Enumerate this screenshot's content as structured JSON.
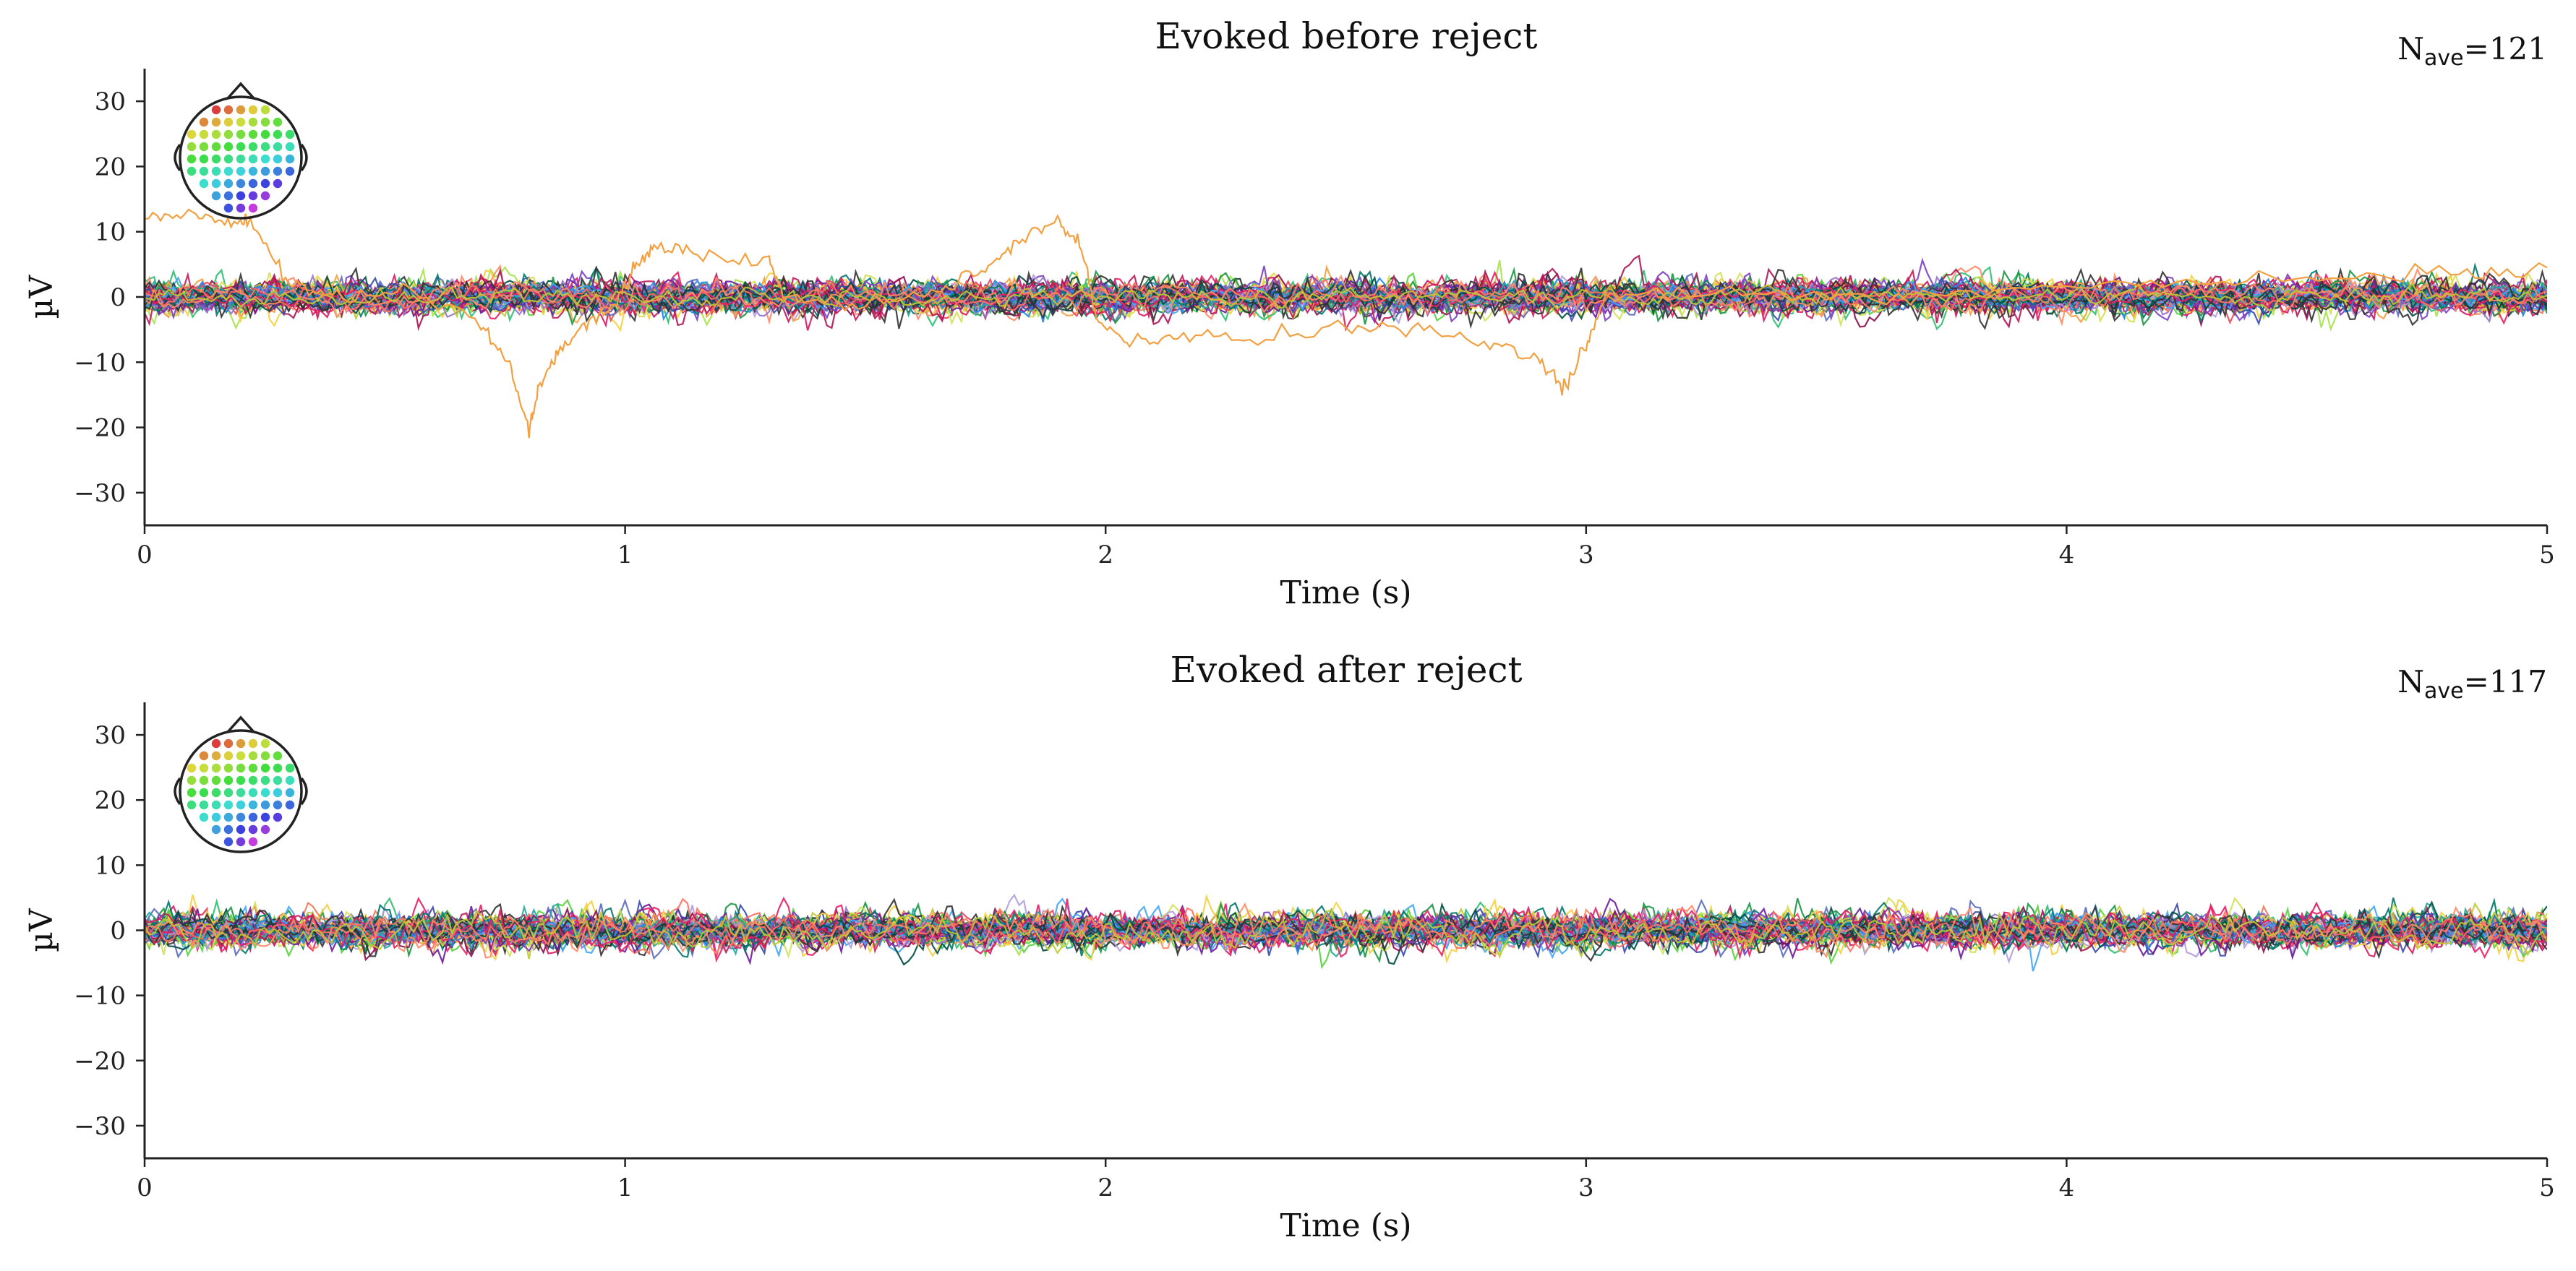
{
  "chart_data": [
    {
      "type": "line",
      "title": "Evoked before reject",
      "nave_label": "N",
      "nave_sub": "ave",
      "nave_value": "=121",
      "xlabel": "Time (s)",
      "ylabel": "µV",
      "xlim": [
        0,
        5
      ],
      "ylim": [
        -35,
        35
      ],
      "xticks": [
        0,
        1,
        2,
        3,
        4,
        5
      ],
      "yticks": [
        -30,
        -20,
        -10,
        0,
        10,
        20,
        30
      ],
      "ytick_labels": [
        "−30",
        "−20",
        "−10",
        "0",
        "10",
        "20",
        "30"
      ],
      "grid": false,
      "n_channels": 60,
      "channel_noise_uV": 1.3,
      "outlier_channel": {
        "color": "#f4a040",
        "points": [
          [
            0,
            12.5
          ],
          [
            0.1,
            13
          ],
          [
            0.18,
            11
          ],
          [
            0.22,
            12
          ],
          [
            0.3,
            2
          ],
          [
            0.4,
            0
          ],
          [
            0.55,
            1
          ],
          [
            0.7,
            -4
          ],
          [
            0.76,
            -10
          ],
          [
            0.8,
            -21
          ],
          [
            0.82,
            -14
          ],
          [
            0.86,
            -8
          ],
          [
            0.92,
            -4
          ],
          [
            0.98,
            -1
          ],
          [
            1.02,
            4
          ],
          [
            1.06,
            7.5
          ],
          [
            1.15,
            6.5
          ],
          [
            1.3,
            5.5
          ],
          [
            1.33,
            0
          ],
          [
            1.5,
            -1
          ],
          [
            1.65,
            1
          ],
          [
            1.75,
            4
          ],
          [
            1.82,
            8.5
          ],
          [
            1.9,
            12
          ],
          [
            1.95,
            8
          ],
          [
            1.98,
            -3
          ],
          [
            2.05,
            -7
          ],
          [
            2.15,
            -6
          ],
          [
            2.3,
            -6.5
          ],
          [
            2.5,
            -4
          ],
          [
            2.65,
            -5
          ],
          [
            2.8,
            -7
          ],
          [
            2.9,
            -9
          ],
          [
            2.95,
            -14
          ],
          [
            3.0,
            -8
          ],
          [
            3.04,
            0
          ],
          [
            3.3,
            1
          ],
          [
            3.6,
            0
          ],
          [
            3.9,
            1
          ],
          [
            4.2,
            2
          ],
          [
            4.5,
            3
          ],
          [
            4.8,
            3.5
          ],
          [
            5.0,
            4.5
          ]
        ]
      }
    },
    {
      "type": "line",
      "title": "Evoked after reject",
      "nave_label": "N",
      "nave_sub": "ave",
      "nave_value": "=117",
      "xlabel": "Time (s)",
      "ylabel": "µV",
      "xlim": [
        0,
        5
      ],
      "ylim": [
        -35,
        35
      ],
      "xticks": [
        0,
        1,
        2,
        3,
        4,
        5
      ],
      "yticks": [
        -30,
        -20,
        -10,
        0,
        10,
        20,
        30
      ],
      "ytick_labels": [
        "−30",
        "−20",
        "−10",
        "0",
        "10",
        "20",
        "30"
      ],
      "grid": false,
      "n_channels": 60,
      "channel_noise_uV": 1.3,
      "outlier_channel": null
    }
  ],
  "channel_palette": [
    "#1a9641",
    "#2fbf71",
    "#57d13b",
    "#a6e34a",
    "#d4e157",
    "#f4d03f",
    "#f4a040",
    "#f07a5a",
    "#e8485c",
    "#d81b60",
    "#c2185b",
    "#ad1457",
    "#880e4f",
    "#6a1b9a",
    "#7b3fc4",
    "#9575cd",
    "#b39ddb",
    "#5c6bc0",
    "#3949ab",
    "#1e88e5",
    "#42a5f5",
    "#26a69a",
    "#00796b",
    "#004d40",
    "#263238",
    "#333333",
    "#e91e63",
    "#ff6f61",
    "#ff8a65",
    "#c0ca33"
  ]
}
